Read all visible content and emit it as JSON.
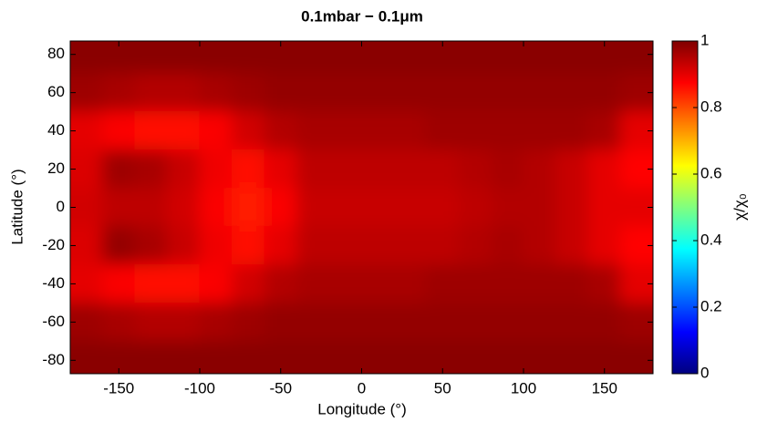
{
  "chart_data": {
    "type": "contour",
    "title": "0.1mbar − 0.1μm",
    "x_label": "Longitude (°)",
    "y_label": "Latitude (°)",
    "x": [
      -170,
      -150,
      -130,
      -110,
      -90,
      -70,
      -50,
      -30,
      -10,
      10,
      30,
      50,
      70,
      90,
      110,
      130,
      150,
      170
    ],
    "y": [
      80,
      60,
      40,
      20,
      0,
      -20,
      -40,
      -60,
      -80
    ],
    "z": [
      [
        0.99,
        0.99,
        0.99,
        0.99,
        0.99,
        0.99,
        0.99,
        0.99,
        0.99,
        0.99,
        0.99,
        0.99,
        0.99,
        0.99,
        0.99,
        0.99,
        0.99,
        0.99
      ],
      [
        0.97,
        0.96,
        0.95,
        0.95,
        0.96,
        0.97,
        0.98,
        0.98,
        0.98,
        0.98,
        0.98,
        0.98,
        0.98,
        0.98,
        0.98,
        0.98,
        0.98,
        0.97
      ],
      [
        0.9,
        0.88,
        0.86,
        0.86,
        0.88,
        0.92,
        0.95,
        0.96,
        0.96,
        0.96,
        0.96,
        0.97,
        0.97,
        0.97,
        0.97,
        0.97,
        0.96,
        0.9
      ],
      [
        0.91,
        0.97,
        0.96,
        0.93,
        0.89,
        0.86,
        0.9,
        0.94,
        0.94,
        0.94,
        0.94,
        0.94,
        0.95,
        0.96,
        0.95,
        0.93,
        0.9,
        0.87
      ],
      [
        0.92,
        0.94,
        0.94,
        0.92,
        0.88,
        0.85,
        0.88,
        0.93,
        0.93,
        0.93,
        0.93,
        0.93,
        0.94,
        0.95,
        0.95,
        0.93,
        0.9,
        0.9
      ],
      [
        0.91,
        0.98,
        0.96,
        0.93,
        0.89,
        0.86,
        0.9,
        0.94,
        0.94,
        0.94,
        0.94,
        0.94,
        0.95,
        0.96,
        0.95,
        0.93,
        0.9,
        0.87
      ],
      [
        0.9,
        0.88,
        0.86,
        0.86,
        0.88,
        0.92,
        0.95,
        0.96,
        0.96,
        0.96,
        0.96,
        0.97,
        0.97,
        0.97,
        0.97,
        0.97,
        0.96,
        0.9
      ],
      [
        0.97,
        0.96,
        0.95,
        0.95,
        0.96,
        0.97,
        0.98,
        0.98,
        0.98,
        0.98,
        0.98,
        0.98,
        0.98,
        0.98,
        0.98,
        0.98,
        0.98,
        0.97
      ],
      [
        0.99,
        0.99,
        0.99,
        0.99,
        0.99,
        0.99,
        0.99,
        0.99,
        0.99,
        0.99,
        0.99,
        0.99,
        0.99,
        0.99,
        0.99,
        0.99,
        0.99,
        0.99
      ]
    ],
    "xlim": [
      -180,
      180
    ],
    "ylim": [
      -87,
      87
    ],
    "xticks": [
      -150,
      -100,
      -50,
      0,
      50,
      100,
      150
    ],
    "yticks": [
      -80,
      -60,
      -40,
      -20,
      0,
      20,
      40,
      60,
      80
    ],
    "colormap": "jet",
    "clim": [
      0,
      1
    ],
    "cticks": [
      0,
      0.2,
      0.4,
      0.6,
      0.8,
      1
    ],
    "colorbar_label": "χ/χ₀"
  }
}
